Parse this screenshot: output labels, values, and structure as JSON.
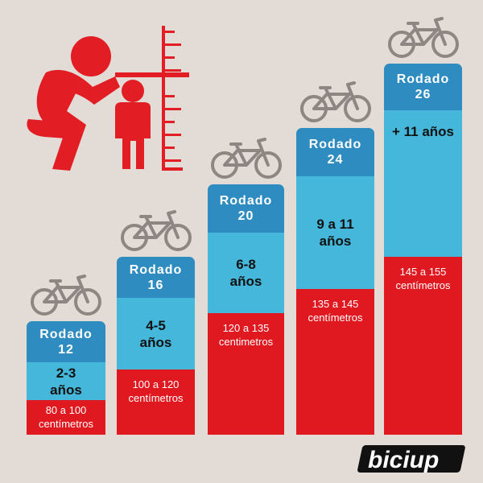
{
  "brand": {
    "name": "biciup"
  },
  "colors": {
    "background": "#e3dbd5",
    "header": "#2f8cc0",
    "age": "#44b7da",
    "height": "#e0181f",
    "bike": "#8e8682"
  },
  "chart_data": {
    "type": "bar",
    "categories": [
      "12",
      "16",
      "20",
      "24",
      "26"
    ],
    "columns": [
      {
        "rodado_label": "Rodado",
        "rodado_size": "12",
        "age_line1": "2-3",
        "age_line2": "años",
        "height_line1": "80 a 100",
        "height_line2": "centímetros",
        "height_min_cm": 80,
        "height_max_cm": 100
      },
      {
        "rodado_label": "Rodado",
        "rodado_size": "16",
        "age_line1": "4-5",
        "age_line2": "años",
        "height_line1": "100 a 120",
        "height_line2": "centímetros",
        "height_min_cm": 100,
        "height_max_cm": 120
      },
      {
        "rodado_label": "Rodado",
        "rodado_size": "20",
        "age_line1": "6-8",
        "age_line2": "años",
        "height_line1": "120 a 135",
        "height_line2": "centimetros",
        "height_min_cm": 120,
        "height_max_cm": 135
      },
      {
        "rodado_label": "Rodado",
        "rodado_size": "24",
        "age_line1": "9 a  11",
        "age_line2": "años",
        "height_line1": "135 a 145",
        "height_line2": "centímetros",
        "height_min_cm": 135,
        "height_max_cm": 145
      },
      {
        "rodado_label": "Rodado",
        "rodado_size": "26",
        "age_line1": "+ 11 años",
        "age_line2": "",
        "height_line1": "145 a 155",
        "height_line2": "centímetros",
        "height_min_cm": 145,
        "height_max_cm": 155
      }
    ],
    "icons": [
      "child-measuring-icon",
      "bicycle-icon"
    ]
  }
}
